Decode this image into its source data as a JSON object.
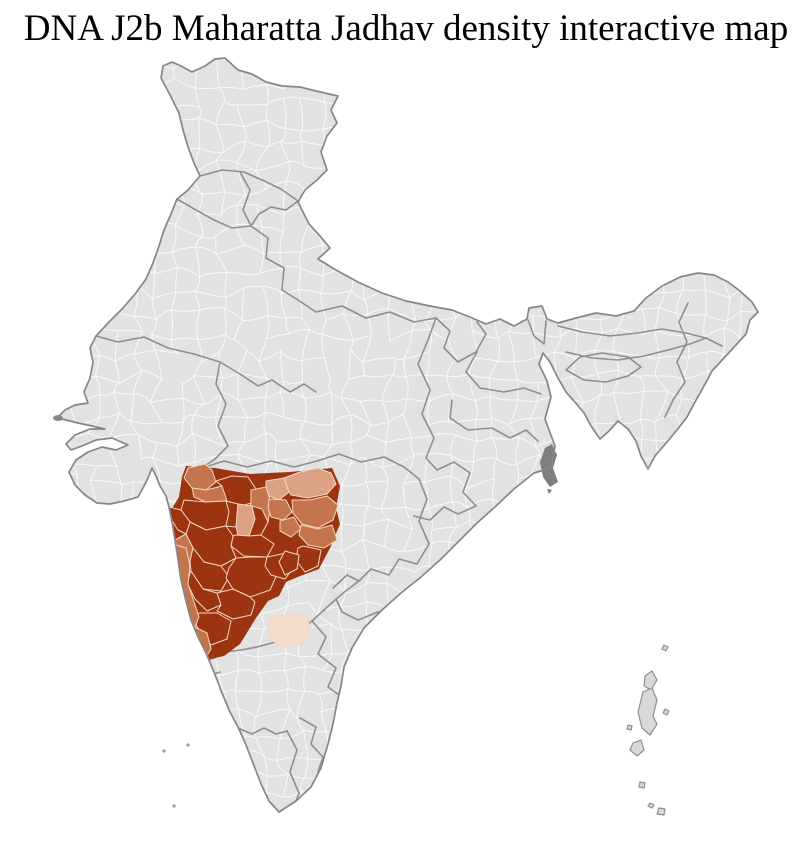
{
  "header": {
    "title": "DNA J2b Maharatta Jadhav density interactive map"
  },
  "map": {
    "colors": {
      "background": "#ffffff",
      "land": "#e2e2e3",
      "district_line": "#f9f9f9",
      "state_border": "#8f8f8f",
      "country_outline": "#868686",
      "highlight_district_line": "#f3d6c2",
      "mangrove_patch": "#7f7f7f",
      "island": "#d9d9d9",
      "island_outline": "#8f8f8f"
    },
    "density_palette": {
      "high": "#9c3410",
      "medium": "#c4754e",
      "low": "#dba284",
      "very_low": "#f4dccb"
    }
  }
}
